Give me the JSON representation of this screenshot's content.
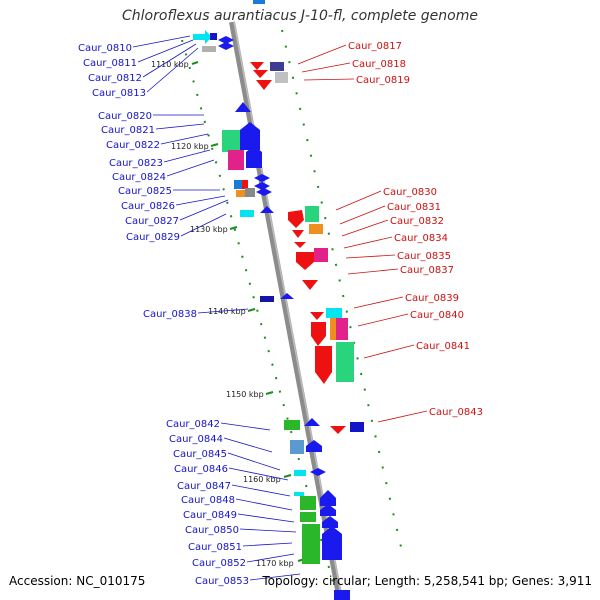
{
  "title": "Chloroflexus aurantiacus J-10-fl, complete genome",
  "accession": "Accession: NC_010175",
  "summary": "Topology: circular; Length: 5,258,541 bp; Genes: 3,911",
  "colors": {
    "left_labels": "#1515c8",
    "right_labels": "#cc1111",
    "backbone": "#8c8c8c",
    "ticks": "#1e8c1e"
  },
  "ruler": [
    "1110 kbp",
    "1120 kbp",
    "1130 kbp",
    "1140 kbp",
    "1150 kbp",
    "1160 kbp",
    "1170 kbp"
  ],
  "left_genes": [
    "Caur_0810",
    "Caur_0811",
    "Caur_0812",
    "Caur_0813",
    "Caur_0820",
    "Caur_0821",
    "Caur_0822",
    "Caur_0823",
    "Caur_0824",
    "Caur_0825",
    "Caur_0826",
    "Caur_0827",
    "Caur_0829",
    "Caur_0838",
    "Caur_0842",
    "Caur_0844",
    "Caur_0845",
    "Caur_0846",
    "Caur_0847",
    "Caur_0848",
    "Caur_0849",
    "Caur_0850",
    "Caur_0851",
    "Caur_0852",
    "Caur_0853"
  ],
  "right_genes": [
    "Caur_0817",
    "Caur_0818",
    "Caur_0819",
    "Caur_0830",
    "Caur_0831",
    "Caur_0832",
    "Caur_0834",
    "Caur_0835",
    "Caur_0837",
    "Caur_0839",
    "Caur_0840",
    "Caur_0841",
    "Caur_0843"
  ]
}
